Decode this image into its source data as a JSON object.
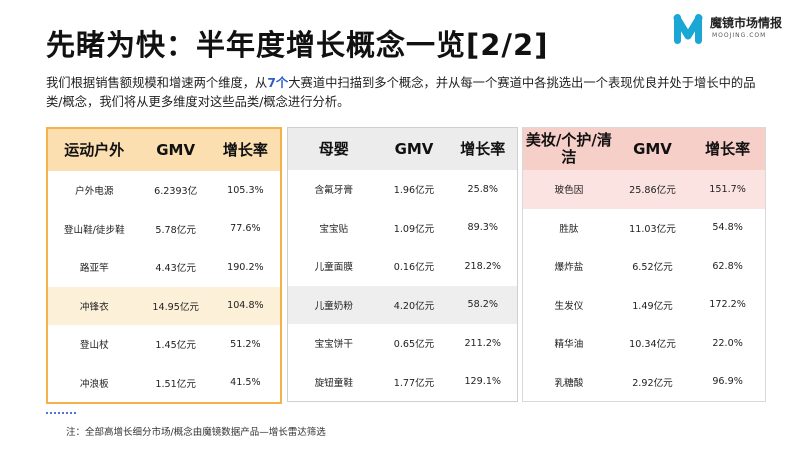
{
  "title": "先睹为快：半年度增长概念一览[2/2]",
  "logo": {
    "name": "魔镜市场情报",
    "domain": "MOOJING.COM",
    "icon": "m-logo-icon",
    "color": "#1aa7d6"
  },
  "intro": {
    "part1": "我们根据销售额规模和增速两个维度，从",
    "highlight": "7个",
    "part2": "大赛道中扫描到多个概念，并从每一个赛道中各挑选出一个表现优良并处于增长中的品类/概念，我们将从更多维度对这些品类/概念进行分析。"
  },
  "tables": [
    {
      "headers": [
        "运动户外",
        "GMV",
        "增长率"
      ],
      "highlight_row": 3,
      "rows": [
        [
          "户外电源",
          "6.2393亿",
          "105.3%"
        ],
        [
          "登山鞋/徒步鞋",
          "5.78亿元",
          "77.6%"
        ],
        [
          "路亚竿",
          "4.43亿元",
          "190.2%"
        ],
        [
          "冲锋衣",
          "14.95亿元",
          "104.8%"
        ],
        [
          "登山杖",
          "1.45亿元",
          "51.2%"
        ],
        [
          "冲浪板",
          "1.51亿元",
          "41.5%"
        ]
      ]
    },
    {
      "headers": [
        "母婴",
        "GMV",
        "增长率"
      ],
      "highlight_row": 3,
      "rows": [
        [
          "含氟牙膏",
          "1.96亿元",
          "25.8%"
        ],
        [
          "宝宝贴",
          "1.09亿元",
          "89.3%"
        ],
        [
          "儿童面膜",
          "0.16亿元",
          "218.2%"
        ],
        [
          "儿童奶粉",
          "4.20亿元",
          "58.2%"
        ],
        [
          "宝宝饼干",
          "0.65亿元",
          "211.2%"
        ],
        [
          "旋钮童鞋",
          "1.77亿元",
          "129.1%"
        ]
      ]
    },
    {
      "headers": [
        "美妆/个护/清洁",
        "GMV",
        "增长率"
      ],
      "highlight_row": 0,
      "rows": [
        [
          "玻色因",
          "25.86亿元",
          "151.7%"
        ],
        [
          "胜肽",
          "11.03亿元",
          "54.8%"
        ],
        [
          "爆炸盐",
          "6.52亿元",
          "62.8%"
        ],
        [
          "生发仪",
          "1.49亿元",
          "172.2%"
        ],
        [
          "精华油",
          "10.34亿元",
          "22.0%"
        ],
        [
          "乳糖酸",
          "2.92亿元",
          "96.9%"
        ]
      ]
    }
  ],
  "note": "注：全部高增长细分市场/概念由魔镜数据产品—增长雷达筛选",
  "colors": {
    "accent_blue": "#2e5dc9",
    "orange_border": "#f6b24a",
    "orange_header": "#fbdfb0",
    "gray_header": "#ececec",
    "pink_header": "#f7cfc9"
  }
}
